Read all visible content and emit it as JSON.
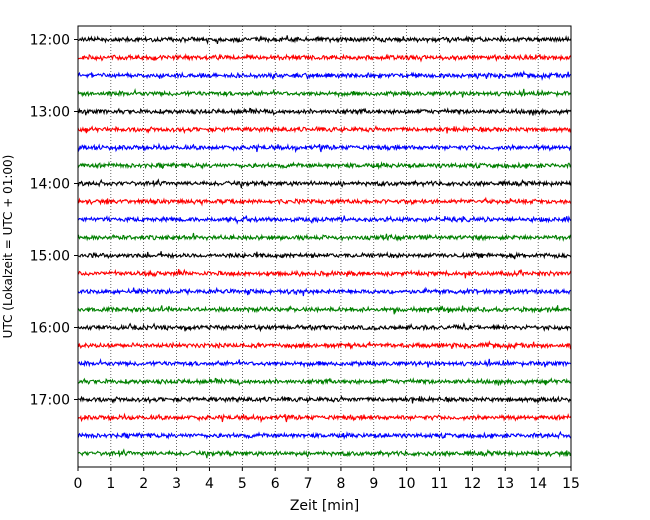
{
  "chart_data": {
    "type": "line",
    "title": "",
    "xlabel": "Zeit  [min]",
    "ylabel": "UTC (Lokalzeit = UTC + 01:00)",
    "xlim": [
      0,
      15
    ],
    "x_ticks": [
      0,
      1,
      2,
      3,
      4,
      5,
      6,
      7,
      8,
      9,
      10,
      11,
      12,
      13,
      14,
      15
    ],
    "y_tick_labels": [
      "12:00",
      "13:00",
      "14:00",
      "15:00",
      "16:00",
      "17:00"
    ],
    "row_interval_min": 15,
    "row_start": "12:00",
    "row_count": 24,
    "row_colors": [
      "#000000",
      "#ff0000",
      "#0000ff",
      "#008000"
    ],
    "grid": "vertical dotted at each minute",
    "note_values": "seismic helicorder traces; each row is 15 minutes of near-constant low-amplitude noise around its baseline"
  }
}
